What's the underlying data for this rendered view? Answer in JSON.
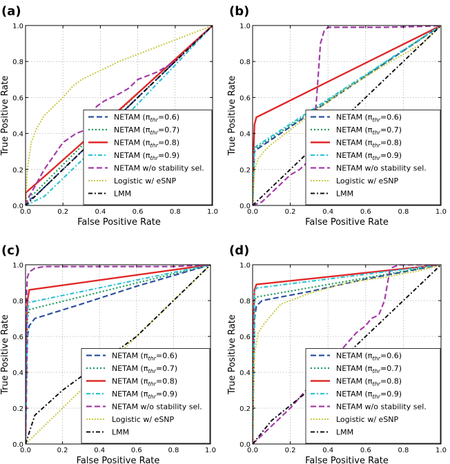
{
  "chart_data": [
    {
      "panel_label": "(a)",
      "type": "line",
      "xlabel": "False Positive Rate",
      "ylabel": "True Positive Rate",
      "xlim": [
        0,
        1
      ],
      "ylim": [
        0,
        1
      ],
      "xticks": [
        "0.0",
        "0.2",
        "0.4",
        "0.6",
        "0.8",
        "1.0"
      ],
      "yticks": [
        "0.0",
        "0.2",
        "0.4",
        "0.6",
        "0.8",
        "1.0"
      ],
      "grid": true,
      "legend_position": "lower-right",
      "series": [
        {
          "name": "NETAM (πthr=0.6)",
          "legend_label": "NETAM (π",
          "legend_sub": "thr",
          "legend_tail": "=0.6)",
          "color": "#2b4fa0",
          "dash": "8,4",
          "width": 2.2,
          "x": [
            0,
            0.0,
            0.05,
            0.3,
            0.7,
            1.0
          ],
          "y": [
            0,
            0.02,
            0.05,
            0.3,
            0.7,
            1.0
          ]
        },
        {
          "name": "NETAM (πthr=0.7)",
          "legend_label": "NETAM (π",
          "legend_sub": "thr",
          "legend_tail": "=0.7)",
          "color": "#1a9a5a",
          "dash": "2,3",
          "width": 2.2,
          "x": [
            0,
            0.0,
            0.05,
            0.3,
            0.7,
            1.0
          ],
          "y": [
            0,
            0.04,
            0.07,
            0.33,
            0.72,
            1.0
          ]
        },
        {
          "name": "NETAM (πthr=0.8)",
          "legend_label": "NETAM (π",
          "legend_sub": "thr",
          "legend_tail": "=0.8)",
          "color": "#e02828",
          "dash": "",
          "width": 2.4,
          "x": [
            0,
            0.0,
            0.1,
            0.5,
            1.0
          ],
          "y": [
            0,
            0.07,
            0.16,
            0.53,
            1.0
          ]
        },
        {
          "name": "NETAM (πthr=0.9)",
          "legend_label": "NETAM (π",
          "legend_sub": "thr",
          "legend_tail": "=0.9)",
          "color": "#2ec4d6",
          "dash": "6,3,2,3",
          "width": 2.2,
          "x": [
            0,
            0.0,
            0.1,
            0.4,
            0.8,
            1.0
          ],
          "y": [
            0,
            0.0,
            0.05,
            0.35,
            0.78,
            1.0
          ]
        },
        {
          "name": "NETAM w/o  stability sel.",
          "legend_label": "NETAM w/o  stability sel.",
          "legend_sub": "",
          "legend_tail": "",
          "color": "#a43aa8",
          "dash": "8,4",
          "width": 2.2,
          "x": [
            0,
            0.02,
            0.1,
            0.2,
            0.27,
            0.32,
            0.35,
            0.38,
            0.42,
            0.46,
            0.5,
            0.55,
            0.6,
            0.7,
            0.8,
            0.9,
            1.0
          ],
          "y": [
            0,
            0.05,
            0.2,
            0.35,
            0.4,
            0.42,
            0.5,
            0.55,
            0.58,
            0.6,
            0.62,
            0.65,
            0.7,
            0.74,
            0.8,
            0.9,
            1.0
          ]
        },
        {
          "name": "Logistic w/ eSNP",
          "legend_label": "Logistic w/ eSNP",
          "legend_sub": "",
          "legend_tail": "",
          "color": "#c8c842",
          "dash": "2,2",
          "width": 2.0,
          "x": [
            0,
            0.01,
            0.03,
            0.06,
            0.1,
            0.15,
            0.2,
            0.25,
            0.3,
            0.4,
            0.5,
            0.6,
            0.7,
            0.8,
            0.9,
            1.0
          ],
          "y": [
            0,
            0.2,
            0.35,
            0.43,
            0.5,
            0.55,
            0.6,
            0.66,
            0.7,
            0.75,
            0.8,
            0.84,
            0.88,
            0.92,
            0.96,
            1.0
          ]
        },
        {
          "name": "LMM",
          "legend_label": "LMM",
          "legend_sub": "",
          "legend_tail": "",
          "color": "#111111",
          "dash": "6,3,2,3",
          "width": 2.0,
          "x": [
            0,
            1
          ],
          "y": [
            0,
            1
          ]
        }
      ]
    },
    {
      "panel_label": "(b)",
      "type": "line",
      "xlabel": "False Positive Rate",
      "ylabel": "True Positive Rate",
      "xlim": [
        0,
        1
      ],
      "ylim": [
        0,
        1
      ],
      "xticks": [
        "0.0",
        "0.2",
        "0.4",
        "0.6",
        "0.8",
        "1.0"
      ],
      "yticks": [
        "0.0",
        "0.2",
        "0.4",
        "0.6",
        "0.8",
        "1.0"
      ],
      "grid": true,
      "legend_position": "lower-right",
      "series": [
        {
          "name": "NETAM (πthr=0.6)",
          "legend_label": "NETAM (π",
          "legend_sub": "thr",
          "legend_tail": "=0.6)",
          "color": "#2b4fa0",
          "dash": "8,4",
          "width": 2.2,
          "x": [
            0,
            0.01,
            0.02,
            1.0
          ],
          "y": [
            0,
            0.3,
            0.31,
            1.0
          ]
        },
        {
          "name": "NETAM (πthr=0.7)",
          "legend_label": "NETAM (π",
          "legend_sub": "thr",
          "legend_tail": "=0.7)",
          "color": "#1a9a5a",
          "dash": "2,3",
          "width": 2.2,
          "x": [
            0,
            0.01,
            0.02,
            1.0
          ],
          "y": [
            0,
            0.31,
            0.32,
            1.0
          ]
        },
        {
          "name": "NETAM (πthr=0.8)",
          "legend_label": "NETAM (π",
          "legend_sub": "thr",
          "legend_tail": "=0.8)",
          "color": "#e02828",
          "dash": "",
          "width": 2.4,
          "x": [
            0,
            0.005,
            0.01,
            0.02,
            1.0
          ],
          "y": [
            0,
            0.3,
            0.45,
            0.49,
            1.0
          ]
        },
        {
          "name": "NETAM (πthr=0.9)",
          "legend_label": "NETAM (π",
          "legend_sub": "thr",
          "legend_tail": "=0.9)",
          "color": "#2ec4d6",
          "dash": "6,3,2,3",
          "width": 2.2,
          "x": [
            0,
            0.01,
            0.02,
            1.0
          ],
          "y": [
            0,
            0.32,
            0.33,
            1.0
          ]
        },
        {
          "name": "NETAM w/o  stability sel.",
          "legend_label": "NETAM w/o  stability sel.",
          "legend_sub": "",
          "legend_tail": "",
          "color": "#a43aa8",
          "dash": "8,4",
          "width": 2.2,
          "x": [
            0,
            0.05,
            0.1,
            0.15,
            0.2,
            0.25,
            0.3,
            0.32,
            0.34,
            0.36,
            0.38,
            0.4,
            0.5,
            0.7,
            0.9,
            1.0
          ],
          "y": [
            0,
            0.02,
            0.07,
            0.12,
            0.17,
            0.2,
            0.25,
            0.35,
            0.6,
            0.9,
            0.97,
            0.99,
            0.99,
            0.99,
            0.995,
            1.0
          ]
        },
        {
          "name": "Logistic w/ eSNP",
          "legend_label": "Logistic w/ eSNP",
          "legend_sub": "",
          "legend_tail": "",
          "color": "#c8c842",
          "dash": "2,2",
          "width": 2.0,
          "x": [
            0,
            0.005,
            0.01,
            0.03,
            0.06,
            0.1,
            0.15,
            0.2,
            0.3,
            0.5,
            0.7,
            0.9,
            1.0
          ],
          "y": [
            0,
            0.1,
            0.2,
            0.26,
            0.3,
            0.34,
            0.38,
            0.42,
            0.5,
            0.65,
            0.78,
            0.9,
            1.0
          ]
        },
        {
          "name": "LMM",
          "legend_label": "LMM",
          "legend_sub": "",
          "legend_tail": "",
          "color": "#111111",
          "dash": "6,3,2,3",
          "width": 2.0,
          "x": [
            0,
            1
          ],
          "y": [
            0,
            1
          ]
        }
      ]
    },
    {
      "panel_label": "(c)",
      "type": "line",
      "xlabel": "False Positive Rate",
      "ylabel": "True Positive Rate",
      "xlim": [
        0,
        1
      ],
      "ylim": [
        0,
        1
      ],
      "xticks": [
        "0.0",
        "0.2",
        "0.4",
        "0.6",
        "0.8",
        "1.0"
      ],
      "yticks": [
        "0.0",
        "0.2",
        "0.4",
        "0.6",
        "0.8",
        "1.0"
      ],
      "grid": true,
      "legend_position": "lower-right",
      "series": [
        {
          "name": "NETAM (πthr=0.6)",
          "legend_label": "NETAM (π",
          "legend_sub": "thr",
          "legend_tail": "=0.6)",
          "color": "#2b4fa0",
          "dash": "8,4",
          "width": 2.2,
          "x": [
            0,
            0.01,
            0.02,
            0.05,
            0.3,
            0.6,
            1.0
          ],
          "y": [
            0,
            0.6,
            0.66,
            0.7,
            0.78,
            0.88,
            1.0
          ]
        },
        {
          "name": "NETAM (πthr=0.7)",
          "legend_label": "NETAM (π",
          "legend_sub": "thr",
          "legend_tail": "=0.7)",
          "color": "#1a9a5a",
          "dash": "2,3",
          "width": 2.2,
          "x": [
            0,
            0.01,
            0.02,
            1.0
          ],
          "y": [
            0,
            0.7,
            0.75,
            1.0
          ]
        },
        {
          "name": "NETAM (πthr=0.8)",
          "legend_label": "NETAM (π",
          "legend_sub": "thr",
          "legend_tail": "=0.8)",
          "color": "#e02828",
          "dash": "",
          "width": 2.4,
          "x": [
            0,
            0.005,
            0.01,
            0.02,
            1.0
          ],
          "y": [
            0,
            0.6,
            0.8,
            0.86,
            1.0
          ]
        },
        {
          "name": "NETAM (πthr=0.9)",
          "legend_label": "NETAM (π",
          "legend_sub": "thr",
          "legend_tail": "=0.9)",
          "color": "#2ec4d6",
          "dash": "6,3,2,3",
          "width": 2.2,
          "x": [
            0,
            0.01,
            0.02,
            1.0
          ],
          "y": [
            0,
            0.75,
            0.79,
            1.0
          ]
        },
        {
          "name": "NETAM w/o  stability sel.",
          "legend_label": "NETAM w/o  stability sel.",
          "legend_sub": "",
          "legend_tail": "",
          "color": "#a43aa8",
          "dash": "8,4",
          "width": 2.2,
          "x": [
            0,
            0.003,
            0.006,
            0.01,
            0.02,
            0.05,
            0.1,
            0.2,
            0.4,
            0.6,
            0.8,
            1.0
          ],
          "y": [
            0,
            0.5,
            0.85,
            0.93,
            0.96,
            0.98,
            0.99,
            0.99,
            0.99,
            0.99,
            0.99,
            1.0
          ]
        },
        {
          "name": "Logistic w/ eSNP",
          "legend_label": "Logistic w/ eSNP",
          "legend_sub": "",
          "legend_tail": "",
          "color": "#c8c842",
          "dash": "2,2",
          "width": 2.0,
          "x": [
            0,
            1
          ],
          "y": [
            0,
            1
          ]
        },
        {
          "name": "LMM",
          "legend_label": "LMM",
          "legend_sub": "",
          "legend_tail": "",
          "color": "#111111",
          "dash": "6,3,2,3",
          "width": 2.0,
          "x": [
            0,
            0.05,
            0.2,
            0.4,
            0.6,
            0.8,
            1.0
          ],
          "y": [
            0,
            0.16,
            0.3,
            0.45,
            0.6,
            0.8,
            1.0
          ]
        }
      ]
    },
    {
      "panel_label": "(d)",
      "type": "line",
      "xlabel": "False Positive Rate",
      "ylabel": "True Positive Rate",
      "xlim": [
        0,
        1
      ],
      "ylim": [
        0,
        1
      ],
      "xticks": [
        "0.0",
        "0.2",
        "0.4",
        "0.6",
        "0.8",
        "1.0"
      ],
      "yticks": [
        "0.0",
        "0.2",
        "0.4",
        "0.6",
        "0.8",
        "1.0"
      ],
      "grid": true,
      "legend_position": "lower-right",
      "series": [
        {
          "name": "NETAM (πthr=0.6)",
          "legend_label": "NETAM (π",
          "legend_sub": "thr",
          "legend_tail": "=0.6)",
          "color": "#2b4fa0",
          "dash": "8,4",
          "width": 2.2,
          "x": [
            0,
            0.01,
            0.02,
            0.05,
            0.3,
            0.6,
            1.0
          ],
          "y": [
            0,
            0.7,
            0.77,
            0.8,
            0.85,
            0.92,
            1.0
          ]
        },
        {
          "name": "NETAM (πthr=0.7)",
          "legend_label": "NETAM (π",
          "legend_sub": "thr",
          "legend_tail": "=0.7)",
          "color": "#1a9a5a",
          "dash": "2,3",
          "width": 2.2,
          "x": [
            0,
            0.01,
            0.02,
            1.0
          ],
          "y": [
            0,
            0.8,
            0.82,
            1.0
          ]
        },
        {
          "name": "NETAM (πthr=0.8)",
          "legend_label": "NETAM (π",
          "legend_sub": "thr",
          "legend_tail": "=0.8)",
          "color": "#e02828",
          "dash": "",
          "width": 2.4,
          "x": [
            0,
            0.005,
            0.01,
            0.02,
            1.0
          ],
          "y": [
            0,
            0.7,
            0.86,
            0.89,
            1.0
          ]
        },
        {
          "name": "NETAM (πthr=0.9)",
          "legend_label": "NETAM (π",
          "legend_sub": "thr",
          "legend_tail": "=0.9)",
          "color": "#2ec4d6",
          "dash": "6,3,2,3",
          "width": 2.2,
          "x": [
            0,
            0.01,
            0.02,
            1.0
          ],
          "y": [
            0,
            0.85,
            0.87,
            1.0
          ]
        },
        {
          "name": "NETAM w/o  stability sel.",
          "legend_label": "NETAM w/o  stability sel.",
          "legend_sub": "",
          "legend_tail": "",
          "color": "#a43aa8",
          "dash": "8,4",
          "width": 2.2,
          "x": [
            0,
            0.05,
            0.1,
            0.2,
            0.3,
            0.35,
            0.4,
            0.45,
            0.5,
            0.55,
            0.6,
            0.63,
            0.67,
            0.7,
            0.73,
            0.78,
            0.85,
            0.95,
            1.0
          ],
          "y": [
            0,
            0.05,
            0.1,
            0.2,
            0.32,
            0.38,
            0.42,
            0.5,
            0.56,
            0.62,
            0.66,
            0.7,
            0.72,
            0.8,
            0.98,
            1.0,
            1.0,
            1.0,
            1.0
          ]
        },
        {
          "name": "Logistic w/ eSNP",
          "legend_label": "Logistic w/ eSNP",
          "legend_sub": "",
          "legend_tail": "",
          "color": "#c8c842",
          "dash": "2,2",
          "width": 2.0,
          "x": [
            0,
            0.005,
            0.01,
            0.03,
            0.06,
            0.1,
            0.15,
            0.2,
            0.3,
            0.5,
            0.7,
            0.9,
            1.0
          ],
          "y": [
            0,
            0.35,
            0.5,
            0.62,
            0.67,
            0.72,
            0.78,
            0.8,
            0.84,
            0.9,
            0.93,
            0.97,
            1.0
          ]
        },
        {
          "name": "LMM",
          "legend_label": "LMM",
          "legend_sub": "",
          "legend_tail": "",
          "color": "#111111",
          "dash": "6,3,2,3",
          "width": 2.0,
          "x": [
            0,
            0.1,
            0.3,
            0.5,
            0.7,
            0.9,
            1.0
          ],
          "y": [
            0,
            0.13,
            0.3,
            0.5,
            0.7,
            0.9,
            1.0
          ]
        }
      ]
    }
  ]
}
